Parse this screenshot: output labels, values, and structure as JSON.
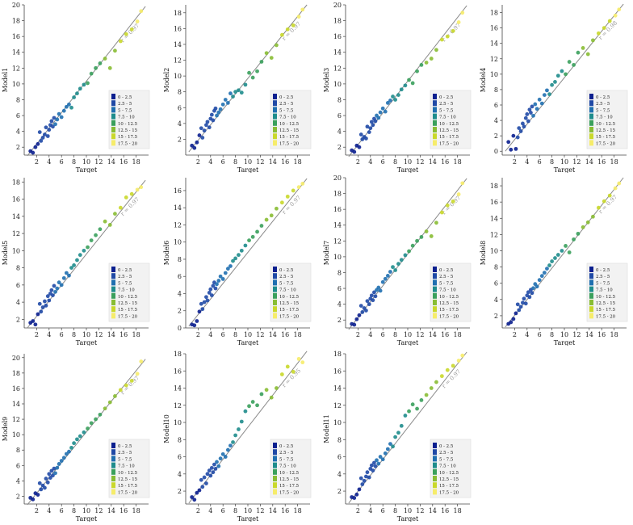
{
  "x_label": "Target",
  "legend": {
    "bins": [
      "0 - 2.5",
      "2.5 - 5",
      "5 - 7.5",
      "7.5 - 10",
      "10 - 12.5",
      "12.5 - 15",
      "15 - 17.5",
      "17.5 - 20"
    ],
    "colors": [
      "#0b1f8f",
      "#1f49a6",
      "#1f6fb0",
      "#1e8c8c",
      "#3aa05c",
      "#88bd33",
      "#c9d82a",
      "#f6ec6a"
    ]
  },
  "chart_data": [
    {
      "type": "scatter",
      "ylabel": "Model1",
      "r_label": "r = 0.97",
      "xlim": [
        0,
        20
      ],
      "ylim": [
        1,
        20
      ],
      "xticks": [
        2,
        4,
        6,
        8,
        10,
        12,
        14,
        16,
        18
      ],
      "yticks": [
        2,
        4,
        6,
        8,
        10,
        12,
        14,
        16,
        18,
        20
      ],
      "fit": {
        "x": [
          0.5,
          19.5
        ],
        "y": [
          0.9,
          19.8
        ]
      },
      "x": [
        1.0,
        1.4,
        1.8,
        2.2,
        2.5,
        2.7,
        3.0,
        3.3,
        3.5,
        3.8,
        4.0,
        4.2,
        4.4,
        4.6,
        4.8,
        5.0,
        5.3,
        5.6,
        6.0,
        6.4,
        6.8,
        7.2,
        7.6,
        8.0,
        8.5,
        9.0,
        9.6,
        10.2,
        10.8,
        11.5,
        12.2,
        13.0,
        13.8,
        14.6,
        15.5,
        16.4,
        17.3,
        18.2,
        18.8
      ],
      "y": [
        1.5,
        1.3,
        2.0,
        2.4,
        3.9,
        2.8,
        3.2,
        3.6,
        4.5,
        3.4,
        4.2,
        4.8,
        5.3,
        4.6,
        5.7,
        4.9,
        5.5,
        6.2,
        5.8,
        6.6,
        7.1,
        7.4,
        7.0,
        8.3,
        8.8,
        9.4,
        9.9,
        10.1,
        11.3,
        12.0,
        12.6,
        13.2,
        12.0,
        14.2,
        15.4,
        16.3,
        16.9,
        17.9,
        19.2
      ]
    },
    {
      "type": "scatter",
      "ylabel": "Model2",
      "r_label": "r = 0.97",
      "xlim": [
        0,
        20
      ],
      "ylim": [
        0,
        19
      ],
      "xticks": [
        2,
        4,
        6,
        8,
        10,
        12,
        14,
        16,
        18
      ],
      "yticks": [
        2,
        4,
        6,
        8,
        10,
        12,
        14,
        16,
        18
      ],
      "fit": {
        "x": [
          0.5,
          19.5
        ],
        "y": [
          0.4,
          19.0
        ]
      },
      "x": [
        1.0,
        1.4,
        1.8,
        2.2,
        2.5,
        2.7,
        3.0,
        3.3,
        3.5,
        3.8,
        4.0,
        4.2,
        4.4,
        4.6,
        4.8,
        5.0,
        5.3,
        5.6,
        6.0,
        6.4,
        6.8,
        7.2,
        7.6,
        8.0,
        8.5,
        9.0,
        9.6,
        10.2,
        10.8,
        11.5,
        12.2,
        13.0,
        13.8,
        14.6,
        15.5,
        16.4,
        17.3,
        18.2,
        18.8
      ],
      "y": [
        1.2,
        0.9,
        1.6,
        2.5,
        3.4,
        2.2,
        3.1,
        3.8,
        4.2,
        3.5,
        4.6,
        5.1,
        4.4,
        5.6,
        5.9,
        5.0,
        5.4,
        5.8,
        6.4,
        7.0,
        6.6,
        7.8,
        7.4,
        8.0,
        8.2,
        7.9,
        8.9,
        10.4,
        9.8,
        10.6,
        11.8,
        12.9,
        12.3,
        13.9,
        15.2,
        15.9,
        16.4,
        17.5,
        18.4
      ]
    },
    {
      "type": "scatter",
      "ylabel": "Model3",
      "r_label": "r = 0.97",
      "xlim": [
        0,
        20
      ],
      "ylim": [
        1,
        20
      ],
      "xticks": [
        2,
        4,
        6,
        8,
        10,
        12,
        14,
        16,
        18
      ],
      "yticks": [
        2,
        4,
        6,
        8,
        10,
        12,
        14,
        16,
        18,
        20
      ],
      "fit": {
        "x": [
          0.5,
          19.5
        ],
        "y": [
          0.8,
          19.9
        ]
      },
      "x": [
        1.0,
        1.4,
        1.8,
        2.2,
        2.5,
        2.7,
        3.0,
        3.3,
        3.5,
        3.8,
        4.0,
        4.2,
        4.4,
        4.6,
        4.8,
        5.0,
        5.3,
        5.6,
        6.0,
        6.4,
        6.8,
        7.2,
        7.6,
        8.0,
        8.5,
        9.0,
        9.6,
        10.2,
        10.8,
        11.5,
        12.2,
        13.0,
        13.8,
        14.6,
        15.5,
        16.4,
        17.3,
        18.2,
        18.8
      ],
      "y": [
        1.6,
        1.4,
        2.2,
        2.0,
        3.6,
        3.0,
        3.3,
        3.1,
        4.6,
        3.9,
        4.4,
        5.2,
        4.8,
        5.6,
        5.3,
        6.0,
        5.7,
        6.4,
        6.9,
        6.5,
        7.6,
        7.9,
        8.4,
        8.0,
        8.6,
        9.3,
        9.8,
        10.5,
        10.1,
        11.6,
        12.4,
        12.7,
        13.2,
        14.3,
        15.6,
        16.0,
        16.7,
        17.8,
        19.0
      ]
    },
    {
      "type": "scatter",
      "ylabel": "Model4",
      "r_label": "r = 0.98",
      "xlim": [
        0,
        20
      ],
      "ylim": [
        -0.5,
        19
      ],
      "xticks": [
        2,
        4,
        6,
        8,
        10,
        12,
        14,
        16,
        18
      ],
      "yticks": [
        0,
        2,
        4,
        6,
        8,
        10,
        12,
        14,
        16,
        18
      ],
      "fit": {
        "x": [
          0.5,
          19.5
        ],
        "y": [
          0.0,
          19.1
        ]
      },
      "x": [
        1.0,
        1.4,
        1.8,
        2.2,
        2.5,
        2.7,
        3.0,
        3.3,
        3.5,
        3.8,
        4.0,
        4.2,
        4.4,
        4.6,
        4.8,
        5.0,
        5.3,
        5.6,
        6.0,
        6.4,
        6.8,
        7.2,
        7.6,
        8.0,
        8.5,
        9.0,
        9.6,
        10.2,
        10.8,
        11.5,
        12.2,
        13.0,
        13.8,
        14.6,
        15.5,
        16.4,
        17.3,
        18.2,
        18.8
      ],
      "y": [
        1.2,
        0.2,
        2.0,
        0.3,
        1.8,
        3.0,
        2.6,
        3.6,
        3.2,
        4.3,
        4.8,
        3.9,
        5.4,
        5.0,
        5.8,
        4.6,
        6.1,
        5.5,
        6.7,
        6.2,
        7.3,
        7.9,
        7.4,
        8.6,
        9.0,
        9.8,
        10.4,
        10.0,
        11.6,
        11.2,
        12.8,
        13.4,
        12.6,
        14.4,
        15.3,
        16.0,
        16.9,
        17.6,
        18.4
      ]
    },
    {
      "type": "scatter",
      "ylabel": "Model5",
      "r_label": "r = 0.97",
      "xlim": [
        0,
        20
      ],
      "ylim": [
        1,
        18.5
      ],
      "xticks": [
        2,
        4,
        6,
        8,
        10,
        12,
        14,
        16,
        18
      ],
      "yticks": [
        2,
        4,
        6,
        8,
        10,
        12,
        14,
        16,
        18
      ],
      "fit": {
        "x": [
          0.5,
          19.5
        ],
        "y": [
          1.0,
          18.2
        ]
      },
      "x": [
        1.0,
        1.4,
        1.8,
        2.2,
        2.5,
        2.7,
        3.0,
        3.3,
        3.5,
        3.8,
        4.0,
        4.2,
        4.4,
        4.6,
        4.8,
        5.0,
        5.3,
        5.6,
        6.0,
        6.4,
        6.8,
        7.2,
        7.6,
        8.0,
        8.5,
        9.0,
        9.6,
        10.2,
        10.8,
        11.5,
        12.2,
        13.0,
        13.8,
        14.6,
        15.5,
        16.4,
        17.3,
        18.2,
        18.8
      ],
      "y": [
        1.6,
        1.8,
        1.4,
        2.6,
        3.8,
        2.9,
        3.4,
        4.1,
        3.6,
        4.7,
        4.2,
        5.0,
        5.4,
        4.8,
        5.9,
        5.2,
        5.6,
        6.3,
        6.0,
        6.8,
        7.4,
        7.1,
        8.0,
        8.3,
        8.9,
        9.5,
        10.0,
        10.4,
        11.2,
        11.8,
        12.5,
        13.4,
        13.0,
        14.3,
        15.0,
        16.2,
        16.6,
        17.1,
        17.4
      ]
    },
    {
      "type": "scatter",
      "ylabel": "Model6",
      "r_label": "r = 0.97",
      "xlim": [
        0,
        20
      ],
      "ylim": [
        0,
        17.5
      ],
      "xticks": [
        2,
        4,
        6,
        8,
        10,
        12,
        14,
        16,
        18
      ],
      "yticks": [
        0,
        2,
        4,
        6,
        8,
        10,
        12,
        14,
        16
      ],
      "fit": {
        "x": [
          0.5,
          19.5
        ],
        "y": [
          0.2,
          17.4
        ]
      },
      "x": [
        1.0,
        1.4,
        1.8,
        2.2,
        2.5,
        2.7,
        3.0,
        3.3,
        3.5,
        3.8,
        4.0,
        4.2,
        4.4,
        4.6,
        4.8,
        5.0,
        5.3,
        5.6,
        6.0,
        6.4,
        6.8,
        7.2,
        7.6,
        8.0,
        8.5,
        9.0,
        9.6,
        10.2,
        10.8,
        11.5,
        12.2,
        13.0,
        13.8,
        14.6,
        15.5,
        16.4,
        17.3,
        18.2,
        18.8
      ],
      "y": [
        0.4,
        0.3,
        0.8,
        1.9,
        2.8,
        2.2,
        3.0,
        3.6,
        3.2,
        4.1,
        4.5,
        3.8,
        4.9,
        5.3,
        4.6,
        5.1,
        5.5,
        6.0,
        5.7,
        6.4,
        6.9,
        7.2,
        7.8,
        8.1,
        8.5,
        9.0,
        9.6,
        10.2,
        10.6,
        11.2,
        11.9,
        12.6,
        13.1,
        13.9,
        14.6,
        15.3,
        16.0,
        16.4,
        16.8
      ]
    },
    {
      "type": "scatter",
      "ylabel": "Model7",
      "r_label": "r = 0.97",
      "xlim": [
        0,
        20
      ],
      "ylim": [
        1,
        20
      ],
      "xticks": [
        2,
        4,
        6,
        8,
        10,
        12,
        14,
        16,
        18
      ],
      "yticks": [
        2,
        4,
        6,
        8,
        10,
        12,
        14,
        16,
        18,
        20
      ],
      "fit": {
        "x": [
          0.5,
          19.5
        ],
        "y": [
          0.8,
          19.9
        ]
      },
      "x": [
        1.0,
        1.4,
        1.8,
        2.2,
        2.5,
        2.7,
        3.0,
        3.3,
        3.5,
        3.8,
        4.0,
        4.2,
        4.4,
        4.6,
        4.8,
        5.0,
        5.3,
        5.6,
        6.0,
        6.4,
        6.8,
        7.2,
        7.6,
        8.0,
        8.5,
        9.0,
        9.6,
        10.2,
        10.8,
        11.5,
        12.2,
        13.0,
        13.8,
        14.6,
        15.5,
        16.4,
        17.3,
        18.2,
        18.8
      ],
      "y": [
        1.5,
        1.4,
        2.1,
        2.6,
        3.8,
        3.0,
        3.5,
        3.2,
        4.4,
        4.0,
        4.7,
        5.1,
        4.5,
        5.5,
        5.0,
        5.8,
        6.1,
        5.7,
        6.8,
        7.2,
        7.6,
        8.1,
        8.7,
        8.3,
        9.1,
        9.6,
        10.2,
        10.7,
        11.4,
        12.0,
        12.5,
        13.2,
        12.6,
        14.3,
        15.6,
        16.5,
        17.0,
        17.9,
        19.3
      ]
    },
    {
      "type": "scatter",
      "ylabel": "Model8",
      "r_label": "r = 0.97",
      "xlim": [
        0,
        20
      ],
      "ylim": [
        0.5,
        19
      ],
      "xticks": [
        2,
        4,
        6,
        8,
        10,
        12,
        14,
        16,
        18
      ],
      "yticks": [
        2,
        4,
        6,
        8,
        10,
        12,
        14,
        16,
        18
      ],
      "fit": {
        "x": [
          0.5,
          19.5
        ],
        "y": [
          0.6,
          19.0
        ]
      },
      "x": [
        1.0,
        1.4,
        1.8,
        2.2,
        2.5,
        2.7,
        3.0,
        3.3,
        3.5,
        3.8,
        4.0,
        4.2,
        4.4,
        4.6,
        4.8,
        5.0,
        5.3,
        5.6,
        6.0,
        6.4,
        6.8,
        7.2,
        7.6,
        8.0,
        8.5,
        9.0,
        9.6,
        10.2,
        10.8,
        11.5,
        12.2,
        13.0,
        13.8,
        14.6,
        15.5,
        16.4,
        17.3,
        18.2,
        18.8
      ],
      "y": [
        1.0,
        1.2,
        1.6,
        2.3,
        3.4,
        2.7,
        3.1,
        3.6,
        4.1,
        3.5,
        4.5,
        4.9,
        4.3,
        5.2,
        4.8,
        5.4,
        5.9,
        5.6,
        6.4,
        6.9,
        7.3,
        7.8,
        8.2,
        8.7,
        9.1,
        9.5,
        10.0,
        10.6,
        9.8,
        11.4,
        12.1,
        12.9,
        13.5,
        14.2,
        15.3,
        16.1,
        16.8,
        17.7,
        18.3
      ]
    },
    {
      "type": "scatter",
      "ylabel": "Model9",
      "r_label": "r = 0.97",
      "xlim": [
        0,
        20
      ],
      "ylim": [
        1,
        20.5
      ],
      "xticks": [
        2,
        4,
        6,
        8,
        10,
        12,
        14,
        16,
        18
      ],
      "yticks": [
        2,
        4,
        6,
        8,
        10,
        12,
        14,
        16,
        18,
        20
      ],
      "fit": {
        "x": [
          0.5,
          19.5
        ],
        "y": [
          0.9,
          19.8
        ]
      },
      "x": [
        1.0,
        1.4,
        1.8,
        2.2,
        2.5,
        2.7,
        3.0,
        3.3,
        3.5,
        3.8,
        4.0,
        4.2,
        4.4,
        4.6,
        4.8,
        5.0,
        5.3,
        5.6,
        6.0,
        6.4,
        6.8,
        7.2,
        7.6,
        8.0,
        8.5,
        9.0,
        9.6,
        10.2,
        10.8,
        11.5,
        12.2,
        13.0,
        13.8,
        14.6,
        15.5,
        16.4,
        17.3,
        18.2,
        18.8
      ],
      "y": [
        1.8,
        1.6,
        2.4,
        2.2,
        3.7,
        2.9,
        3.4,
        3.1,
        4.3,
        3.8,
        4.9,
        4.4,
        5.3,
        4.7,
        5.6,
        5.0,
        5.7,
        6.2,
        6.6,
        7.0,
        7.5,
        7.8,
        8.3,
        8.9,
        9.4,
        9.8,
        10.3,
        10.8,
        11.5,
        12.0,
        12.6,
        13.4,
        14.2,
        15.0,
        15.8,
        16.4,
        17.0,
        17.9,
        19.5
      ]
    },
    {
      "type": "scatter",
      "ylabel": "Model10",
      "r_label": "r = 0.95",
      "xlim": [
        0,
        20
      ],
      "ylim": [
        0.5,
        18
      ],
      "xticks": [
        2,
        4,
        6,
        8,
        10,
        12,
        14,
        16,
        18
      ],
      "yticks": [
        2,
        4,
        6,
        8,
        10,
        12,
        14,
        16,
        18
      ],
      "fit": {
        "x": [
          0.5,
          19.5
        ],
        "y": [
          0.6,
          18.3
        ]
      },
      "x": [
        1.0,
        1.4,
        1.8,
        2.2,
        2.5,
        2.7,
        3.0,
        3.3,
        3.5,
        3.8,
        4.0,
        4.2,
        4.4,
        4.6,
        4.8,
        5.0,
        5.3,
        5.6,
        6.0,
        6.4,
        6.8,
        7.2,
        7.6,
        8.0,
        8.5,
        9.0,
        9.6,
        10.2,
        10.8,
        11.5,
        12.2,
        13.0,
        13.8,
        14.6,
        15.5,
        16.4,
        17.3,
        18.2,
        18.8
      ],
      "y": [
        1.3,
        1.0,
        1.8,
        2.1,
        3.3,
        2.5,
        3.6,
        2.9,
        4.0,
        4.4,
        3.8,
        4.7,
        4.2,
        5.1,
        4.6,
        5.4,
        4.9,
        5.8,
        6.3,
        6.0,
        6.8,
        7.3,
        7.7,
        8.5,
        9.2,
        10.1,
        11.3,
        11.9,
        12.4,
        12.0,
        13.3,
        13.8,
        12.9,
        14.0,
        15.6,
        16.5,
        15.9,
        17.4,
        17.0
      ]
    },
    {
      "type": "scatter",
      "ylabel": "Model11",
      "r_label": "r = 0.97",
      "xlim": [
        0,
        20
      ],
      "ylim": [
        0.5,
        18
      ],
      "xticks": [
        2,
        4,
        6,
        8,
        10,
        12,
        14,
        16,
        18
      ],
      "yticks": [
        2,
        4,
        6,
        8,
        10,
        12,
        14,
        16,
        18
      ],
      "fit": {
        "x": [
          0.5,
          19.5
        ],
        "y": [
          0.6,
          18.2
        ]
      },
      "x": [
        1.0,
        1.4,
        1.8,
        2.2,
        2.5,
        2.7,
        3.0,
        3.3,
        3.5,
        3.8,
        4.0,
        4.2,
        4.4,
        4.6,
        4.8,
        5.0,
        5.3,
        5.6,
        6.0,
        6.4,
        6.8,
        7.2,
        7.6,
        8.0,
        8.5,
        9.0,
        9.6,
        10.2,
        10.8,
        11.5,
        12.2,
        13.0,
        13.8,
        14.6,
        15.5,
        16.4,
        17.3,
        18.2,
        18.8
      ],
      "y": [
        1.3,
        1.2,
        1.6,
        2.2,
        3.5,
        2.8,
        3.2,
        3.7,
        4.2,
        3.6,
        4.6,
        5.0,
        4.4,
        5.3,
        4.9,
        5.6,
        5.2,
        6.0,
        5.7,
        6.4,
        6.9,
        7.5,
        7.2,
        8.3,
        8.8,
        9.6,
        10.8,
        11.3,
        12.1,
        11.6,
        12.6,
        13.2,
        14.0,
        14.7,
        15.4,
        16.1,
        16.6,
        17.2,
        17.8
      ]
    }
  ]
}
